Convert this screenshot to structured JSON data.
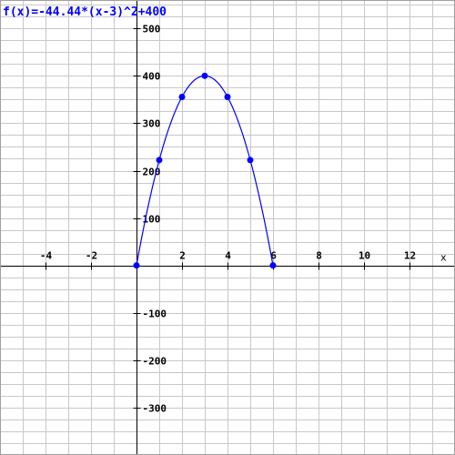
{
  "chart_data": {
    "type": "line",
    "title": "f(x)=-44.44*(x-3)^2+400",
    "xlabel": "x",
    "ylabel": "",
    "xlim": [
      -6,
      14
    ],
    "ylim": [
      -400,
      560
    ],
    "grid": true,
    "x_ticks": [
      -4,
      -2,
      2,
      4,
      6,
      8,
      10,
      12
    ],
    "y_ticks": [
      500,
      400,
      300,
      200,
      100,
      -100,
      -200,
      -300
    ],
    "function": {
      "a": -44.44,
      "h": 3,
      "k": 400,
      "domain": [
        0,
        6
      ]
    },
    "points": {
      "x": [
        0,
        1,
        2,
        3,
        4,
        5,
        6
      ],
      "y": [
        0,
        222.24,
        355.56,
        400,
        355.56,
        222.24,
        0
      ]
    },
    "color": "#0000ff"
  }
}
